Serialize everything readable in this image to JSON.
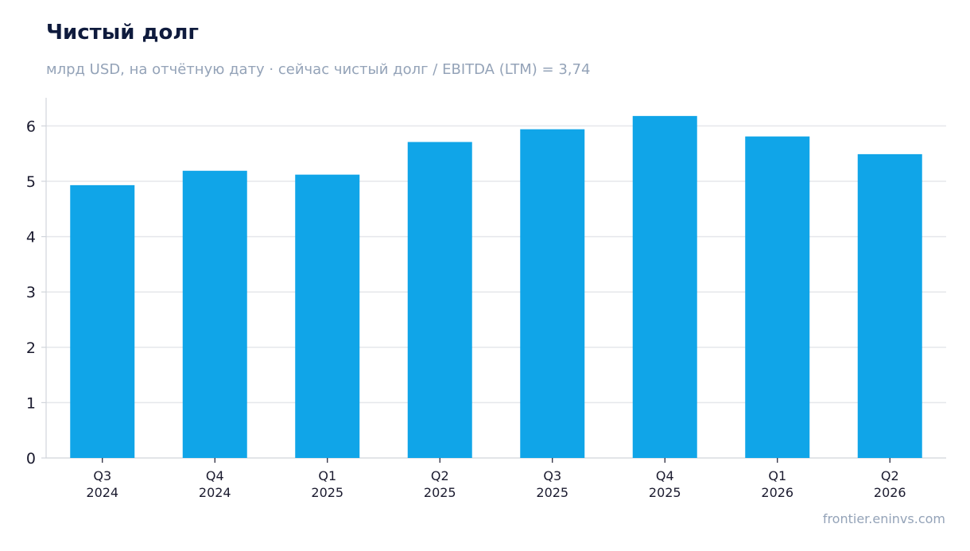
{
  "title": "Чистый долг",
  "subtitle": "млрд USD, на отчётную дату · сейчас чистый долг / EBITDA (LTM) = 3,74",
  "source": "frontier.eninvs.com",
  "colors": {
    "bar": "#10a5e8",
    "grid": "#e5e7eb",
    "axis": "#d1d5db"
  },
  "chart_data": {
    "type": "bar",
    "categories": [
      [
        "Q3",
        "2024"
      ],
      [
        "Q4",
        "2024"
      ],
      [
        "Q1",
        "2025"
      ],
      [
        "Q2",
        "2025"
      ],
      [
        "Q3",
        "2025"
      ],
      [
        "Q4",
        "2025"
      ],
      [
        "Q1",
        "2026"
      ],
      [
        "Q2",
        "2026"
      ]
    ],
    "values": [
      4.93,
      5.19,
      5.12,
      5.71,
      5.94,
      6.18,
      5.81,
      5.49
    ],
    "yticks": [
      0,
      1,
      2,
      3,
      4,
      5,
      6
    ],
    "ylim": [
      0,
      6.5
    ],
    "grid": true
  }
}
